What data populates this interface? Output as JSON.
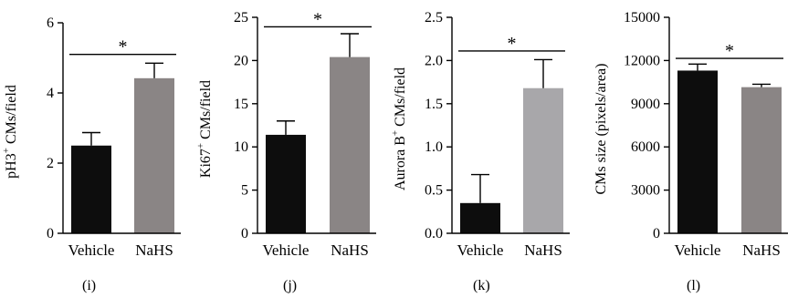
{
  "chart_data": [
    {
      "type": "bar",
      "panel_label": "(i)",
      "ylabel": "pH3",
      "ylabel_sup": "+",
      "ylabel_rest": " CMs/field",
      "categories": [
        "Vehicle",
        "NaHS"
      ],
      "values": [
        2.5,
        4.42
      ],
      "errors": [
        0.37,
        0.43
      ],
      "colors": [
        "#0d0d0d",
        "#8a8585"
      ],
      "ylim": [
        0,
        6
      ],
      "yticks": [
        0,
        2,
        4,
        6
      ],
      "ytick_labels": [
        "0",
        "2",
        "4",
        "6"
      ],
      "significance": {
        "label": "*",
        "line_y": 5.1
      }
    },
    {
      "type": "bar",
      "panel_label": "(j)",
      "ylabel": "Ki67",
      "ylabel_sup": "+",
      "ylabel_rest": " CMs/field",
      "categories": [
        "Vehicle",
        "NaHS"
      ],
      "values": [
        11.4,
        20.4
      ],
      "errors": [
        1.6,
        2.7
      ],
      "colors": [
        "#0d0d0d",
        "#8a8585"
      ],
      "ylim": [
        0,
        25
      ],
      "yticks": [
        0,
        5,
        10,
        15,
        20,
        25
      ],
      "ytick_labels": [
        "0",
        "5",
        "10",
        "15",
        "20",
        "25"
      ],
      "significance": {
        "label": "*",
        "line_y": 23.9
      }
    },
    {
      "type": "bar",
      "panel_label": "(k)",
      "ylabel": "Aurora B",
      "ylabel_sup": "+",
      "ylabel_rest": " CMs/field",
      "categories": [
        "Vehicle",
        "NaHS"
      ],
      "values": [
        0.35,
        1.68
      ],
      "errors": [
        0.33,
        0.33
      ],
      "colors": [
        "#0d0d0d",
        "#a8a7aa"
      ],
      "ylim": [
        0,
        2.5
      ],
      "yticks": [
        0,
        0.5,
        1.0,
        1.5,
        2.0,
        2.5
      ],
      "ytick_labels": [
        "0.0",
        "0.5",
        "1.0",
        "1.5",
        "2.0",
        "2.5"
      ],
      "significance": {
        "label": "*",
        "line_y": 2.11
      }
    },
    {
      "type": "bar",
      "panel_label": "(l)",
      "ylabel": "CMs size (pixels/area)",
      "ylabel_sup": "",
      "ylabel_rest": "",
      "categories": [
        "Vehicle",
        "NaHS"
      ],
      "values": [
        11300,
        10150
      ],
      "errors": [
        450,
        200
      ],
      "colors": [
        "#0d0d0d",
        "#8a8585"
      ],
      "ylim": [
        0,
        15000
      ],
      "yticks": [
        0,
        3000,
        6000,
        9000,
        12000,
        15000
      ],
      "ytick_labels": [
        "0",
        "3000",
        "6000",
        "9000",
        "12000",
        "15000"
      ],
      "significance": {
        "label": "*",
        "line_y": 12150
      }
    }
  ]
}
